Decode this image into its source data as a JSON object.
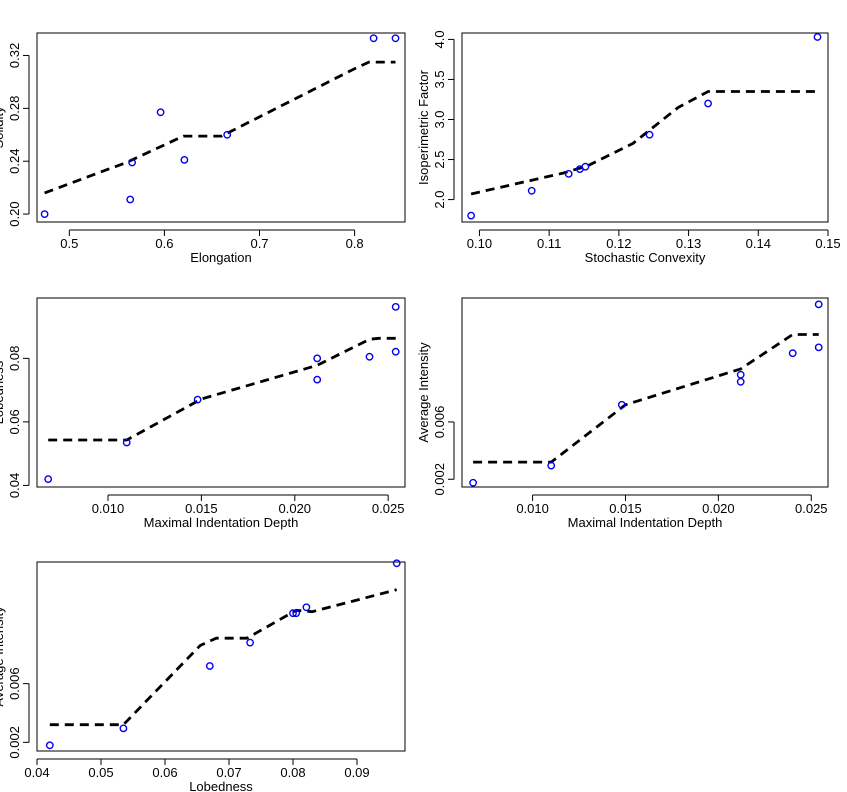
{
  "chart_data": [
    {
      "type": "scatter",
      "id": "p1",
      "xlabel": "Elongation",
      "ylabel": "Solidity",
      "xlim": [
        0.466,
        0.853
      ],
      "ylim": [
        0.194,
        0.337
      ],
      "xticks": [
        0.5,
        0.6,
        0.7,
        0.8
      ],
      "xtick_labels": [
        "0.5",
        "0.6",
        "0.7",
        "0.8"
      ],
      "yticks": [
        0.2,
        0.24,
        0.28,
        0.32
      ],
      "ytick_labels": [
        "0.20",
        "0.24",
        "0.28",
        "0.32"
      ],
      "points": {
        "x": [
          0.474,
          0.564,
          0.566,
          0.596,
          0.621,
          0.666,
          0.82,
          0.843
        ],
        "y": [
          0.2,
          0.211,
          0.239,
          0.277,
          0.241,
          0.26,
          0.333,
          0.333
        ]
      },
      "fit_line": {
        "x": [
          0.474,
          0.56,
          0.62,
          0.66,
          0.8,
          0.815,
          0.843
        ],
        "y": [
          0.216,
          0.239,
          0.259,
          0.259,
          0.31,
          0.315,
          0.315
        ]
      }
    },
    {
      "type": "scatter",
      "id": "p2",
      "xlabel": "Stochastic Convexity",
      "ylabel": "Isoperimetric Factor",
      "xlim": [
        0.0975,
        0.15
      ],
      "ylim": [
        1.72,
        4.08
      ],
      "xticks": [
        0.1,
        0.11,
        0.12,
        0.13,
        0.14,
        0.15
      ],
      "xtick_labels": [
        "0.10",
        "0.11",
        "0.12",
        "0.13",
        "0.14",
        "0.15"
      ],
      "yticks": [
        2.0,
        2.5,
        3.0,
        3.5,
        4.0
      ],
      "ytick_labels": [
        "2.0",
        "2.5",
        "3.0",
        "3.5",
        "4.0"
      ],
      "points": {
        "x": [
          0.0988,
          0.1075,
          0.1128,
          0.1144,
          0.1152,
          0.1244,
          0.1328,
          0.1485
        ],
        "y": [
          1.8,
          2.11,
          2.32,
          2.38,
          2.41,
          2.81,
          3.2,
          4.03
        ]
      },
      "fit_line": {
        "x": [
          0.0988,
          0.112,
          0.1155,
          0.122,
          0.1285,
          0.1328,
          0.1485
        ],
        "y": [
          2.07,
          2.33,
          2.42,
          2.7,
          3.15,
          3.35,
          3.35
        ]
      }
    },
    {
      "type": "scatter",
      "id": "p3",
      "xlabel": "Maximal Indentation Depth",
      "ylabel": "Lobedness",
      "xlim": [
        0.0062,
        0.0259
      ],
      "ylim": [
        0.0395,
        0.099
      ],
      "xticks": [
        0.01,
        0.015,
        0.02,
        0.025
      ],
      "xtick_labels": [
        "0.010",
        "0.015",
        "0.020",
        "0.025"
      ],
      "yticks": [
        0.04,
        0.06,
        0.08
      ],
      "ytick_labels": [
        "0.04",
        "0.06",
        "0.08"
      ],
      "points": {
        "x": [
          0.0068,
          0.011,
          0.0148,
          0.0212,
          0.0212,
          0.024,
          0.0254,
          0.0254
        ],
        "y": [
          0.042,
          0.0535,
          0.067,
          0.08,
          0.0733,
          0.0805,
          0.0821,
          0.0962
        ]
      },
      "fit_line": {
        "x": [
          0.0068,
          0.011,
          0.015,
          0.0212,
          0.024,
          0.0245,
          0.0254
        ],
        "y": [
          0.0543,
          0.0543,
          0.0672,
          0.0778,
          0.086,
          0.0863,
          0.0863
        ]
      }
    },
    {
      "type": "scatter",
      "id": "p4",
      "xlabel": "Maximal Indentation Depth",
      "ylabel": "Average Intensity",
      "xlim": [
        0.0062,
        0.0259
      ],
      "ylim": [
        0.00146,
        0.01465
      ],
      "xticks": [
        0.01,
        0.015,
        0.02,
        0.025
      ],
      "xtick_labels": [
        "0.010",
        "0.015",
        "0.020",
        "0.025"
      ],
      "yticks": [
        0.002,
        0.006
      ],
      "ytick_labels": [
        "0.002",
        "0.006"
      ],
      "points": {
        "x": [
          0.0068,
          0.011,
          0.0148,
          0.0212,
          0.0212,
          0.024,
          0.0254,
          0.0254
        ],
        "y": [
          0.00175,
          0.00295,
          0.0072,
          0.0093,
          0.0088,
          0.0108,
          0.0112,
          0.0142
        ]
      },
      "fit_line": {
        "x": [
          0.0068,
          0.011,
          0.015,
          0.0212,
          0.024,
          0.0245,
          0.0254
        ],
        "y": [
          0.0032,
          0.0032,
          0.0072,
          0.0097,
          0.0121,
          0.0121,
          0.0121
        ]
      }
    },
    {
      "type": "scatter",
      "id": "p5",
      "xlabel": "Lobedness",
      "ylabel": "Average Intensity",
      "xlim": [
        0.04,
        0.0975
      ],
      "ylim": [
        0.00141,
        0.01429
      ],
      "xticks": [
        0.04,
        0.05,
        0.06,
        0.07,
        0.08,
        0.09
      ],
      "xtick_labels": [
        "0.04",
        "0.05",
        "0.06",
        "0.07",
        "0.08",
        "0.09"
      ],
      "yticks": [
        0.002,
        0.006
      ],
      "ytick_labels": [
        "0.002",
        "0.006"
      ],
      "points": {
        "x": [
          0.042,
          0.0535,
          0.067,
          0.0733,
          0.08,
          0.0805,
          0.0821,
          0.0962
        ],
        "y": [
          0.0018,
          0.00295,
          0.0072,
          0.0088,
          0.0108,
          0.0108,
          0.0112,
          0.0142
        ]
      },
      "fit_line": {
        "x": [
          0.042,
          0.0535,
          0.0655,
          0.068,
          0.0728,
          0.0805,
          0.083,
          0.0962
        ],
        "y": [
          0.0032,
          0.0032,
          0.0086,
          0.0091,
          0.0091,
          0.011,
          0.0109,
          0.0124
        ]
      }
    }
  ]
}
